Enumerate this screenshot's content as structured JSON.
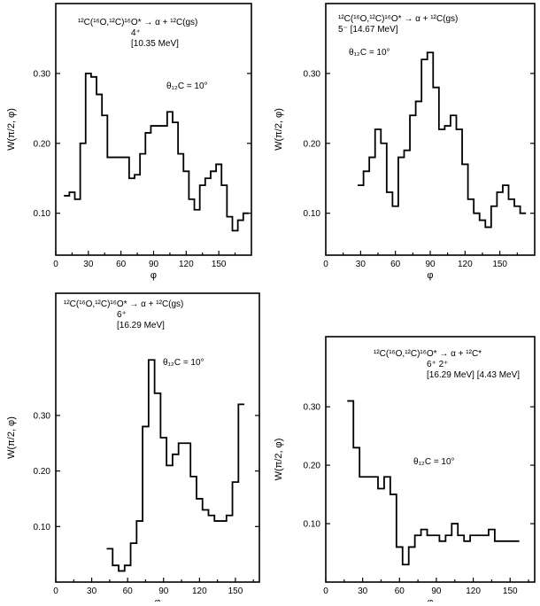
{
  "colors": {
    "line": "#000000",
    "background": "#ffffff"
  },
  "chart_data": [
    {
      "type": "line",
      "step": true,
      "title_lines": [
        "¹²C(¹⁶O,¹²C)¹⁶O* → α + ¹²C(gs)",
        "4⁺",
        "[10.35 MeV]"
      ],
      "annotation": "θ₁₂C = 10°",
      "xlabel": "φ",
      "ylabel": "W(π/2, φ)",
      "xlim": [
        0,
        180
      ],
      "ylim": [
        0.04,
        0.4
      ],
      "xticks": [
        "0",
        "30",
        "60",
        "90",
        "120",
        "150"
      ],
      "yticks": [
        "0.10",
        "0.20",
        "0.30"
      ],
      "bin_width": 5,
      "x": [
        10,
        15,
        20,
        25,
        30,
        35,
        40,
        45,
        50,
        55,
        60,
        65,
        70,
        75,
        80,
        85,
        90,
        95,
        100,
        105,
        110,
        115,
        120,
        125,
        130,
        135,
        140,
        145,
        150,
        155,
        160,
        165,
        170,
        175
      ],
      "values": [
        0.125,
        0.13,
        0.12,
        0.2,
        0.3,
        0.295,
        0.27,
        0.24,
        0.18,
        0.18,
        0.18,
        0.18,
        0.15,
        0.155,
        0.185,
        0.215,
        0.225,
        0.225,
        0.225,
        0.245,
        0.23,
        0.185,
        0.16,
        0.12,
        0.105,
        0.14,
        0.15,
        0.16,
        0.17,
        0.14,
        0.095,
        0.075,
        0.09,
        0.1
      ]
    },
    {
      "type": "line",
      "step": true,
      "title_lines": [
        "¹²C(¹⁶O,¹²C)¹⁶O* → α + ¹²C(gs)",
        "5⁻ [14.67 MeV]"
      ],
      "annotation": "θ₁₂C = 10°",
      "xlabel": "φ",
      "ylabel": "W(π/2, φ)",
      "xlim": [
        0,
        180
      ],
      "ylim": [
        0.04,
        0.4
      ],
      "xticks": [
        "0",
        "30",
        "60",
        "90",
        "120",
        "150"
      ],
      "yticks": [
        "0.10",
        "0.20",
        "0.30"
      ],
      "bin_width": 5,
      "x": [
        30,
        35,
        40,
        45,
        50,
        55,
        60,
        65,
        70,
        75,
        80,
        85,
        90,
        95,
        100,
        105,
        110,
        115,
        120,
        125,
        130,
        135,
        140,
        145,
        150,
        155,
        160,
        165,
        170
      ],
      "values": [
        0.14,
        0.16,
        0.18,
        0.22,
        0.2,
        0.13,
        0.11,
        0.18,
        0.19,
        0.24,
        0.26,
        0.32,
        0.33,
        0.28,
        0.22,
        0.225,
        0.24,
        0.22,
        0.17,
        0.12,
        0.1,
        0.09,
        0.08,
        0.11,
        0.13,
        0.14,
        0.12,
        0.11,
        0.1
      ]
    },
    {
      "type": "line",
      "step": true,
      "title_lines": [
        "¹²C(¹⁶O,¹²C)¹⁶O* → α + ¹²C(gs)",
        "6⁺",
        "[16.29 MeV]"
      ],
      "annotation": "θ₁₂C = 10°",
      "xlabel": "φ",
      "ylabel": "W(π/2, φ)",
      "xlim": [
        0,
        170
      ],
      "ylim": [
        0.0,
        0.52
      ],
      "xticks": [
        "0",
        "30",
        "60",
        "90",
        "120",
        "150"
      ],
      "yticks": [
        "0.10",
        "0.20",
        "0.30"
      ],
      "bin_width": 5,
      "x": [
        45,
        50,
        55,
        60,
        65,
        70,
        75,
        80,
        85,
        90,
        95,
        100,
        105,
        110,
        115,
        120,
        125,
        130,
        135,
        140,
        145,
        150,
        155
      ],
      "values": [
        0.06,
        0.03,
        0.02,
        0.03,
        0.07,
        0.11,
        0.28,
        0.4,
        0.34,
        0.26,
        0.21,
        0.23,
        0.25,
        0.25,
        0.19,
        0.15,
        0.13,
        0.12,
        0.11,
        0.11,
        0.12,
        0.18,
        0.32
      ]
    },
    {
      "type": "line",
      "step": true,
      "title_lines": [
        "¹²C(¹⁶O,¹²C)¹⁶O* → α + ¹²C*",
        "6⁺ 2⁺",
        "[16.29 MeV] [4.43 MeV]"
      ],
      "annotation": "θ₁₂C = 10°",
      "xlabel": "φ",
      "ylabel": "W(π/2, φ)",
      "xlim": [
        0,
        170
      ],
      "ylim": [
        0.0,
        0.42
      ],
      "xticks": [
        "0",
        "30",
        "60",
        "90",
        "120",
        "150"
      ],
      "yticks": [
        "0.10",
        "0.20",
        "0.30"
      ],
      "bin_width": 5,
      "x": [
        20,
        25,
        30,
        35,
        40,
        45,
        50,
        55,
        60,
        65,
        70,
        75,
        80,
        85,
        90,
        95,
        100,
        105,
        110,
        115,
        120,
        125,
        130,
        135,
        140,
        145,
        150,
        155
      ],
      "values": [
        0.31,
        0.23,
        0.18,
        0.18,
        0.18,
        0.16,
        0.18,
        0.15,
        0.06,
        0.03,
        0.06,
        0.08,
        0.09,
        0.08,
        0.08,
        0.07,
        0.08,
        0.1,
        0.08,
        0.07,
        0.08,
        0.08,
        0.08,
        0.09,
        0.07,
        0.07,
        0.07,
        0.07
      ]
    }
  ]
}
